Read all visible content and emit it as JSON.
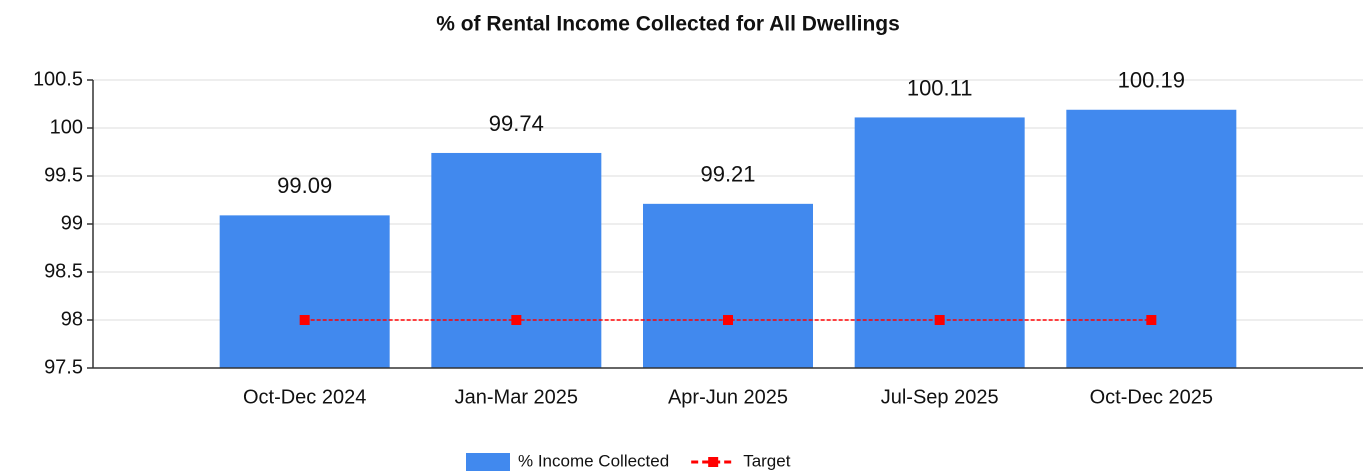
{
  "chart_data": {
    "type": "bar",
    "title": "% of Rental Income Collected for All Dwellings",
    "categories": [
      "Oct-Dec 2024",
      "Jan-Mar 2025",
      "Apr-Jun 2025",
      "Jul-Sep 2025",
      "Oct-Dec 2025"
    ],
    "series": [
      {
        "name": "% Income Collected",
        "type": "bar",
        "color": "#4189ee",
        "values": [
          99.09,
          99.74,
          99.21,
          100.11,
          100.19
        ]
      },
      {
        "name": "Target",
        "type": "line",
        "color": "#ff0000",
        "values": [
          98,
          98,
          98,
          98,
          98
        ]
      }
    ],
    "ylim": [
      97.5,
      100.5
    ],
    "yticks": [
      97.5,
      98,
      98.5,
      99,
      99.5,
      100,
      100.5
    ],
    "grid": true,
    "legend": "bottom"
  }
}
